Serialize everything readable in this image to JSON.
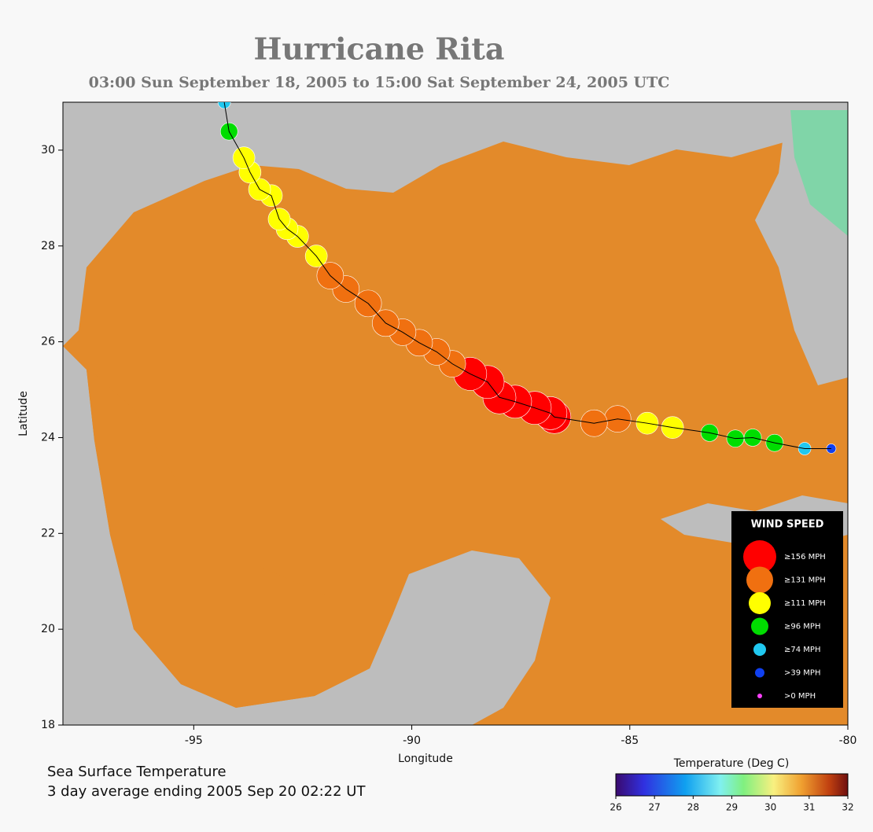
{
  "chart_data": {
    "type": "track",
    "title": "Hurricane Rita",
    "subtitle": "03:00 Sun September 18, 2005 to 15:00 Sat September 24, 2005  UTC",
    "x_label": "Longitude",
    "y_label": "Latitude",
    "xlim": [
      -98,
      -80
    ],
    "ylim": [
      18,
      31
    ],
    "xticks": [
      -95,
      -90,
      -85,
      -80
    ],
    "yticks": [
      18,
      20,
      22,
      24,
      26,
      28,
      30
    ],
    "x": [
      -80.38,
      -80.99,
      -81.68,
      -82.18,
      -82.58,
      -83.17,
      -84.02,
      -84.6,
      -85.28,
      -85.82,
      -86.73,
      -86.82,
      -87.18,
      -87.63,
      -87.99,
      -88.26,
      -88.66,
      -89.07,
      -89.43,
      -89.83,
      -90.21,
      -90.6,
      -91.0,
      -91.51,
      -91.87,
      -92.19,
      -92.62,
      -92.86,
      -93.04,
      -93.22,
      -93.49,
      -93.71,
      -93.85,
      -94.19,
      -94.3
    ],
    "y": [
      23.77,
      23.77,
      23.89,
      24.0,
      23.98,
      24.1,
      24.21,
      24.3,
      24.39,
      24.3,
      24.43,
      24.51,
      24.62,
      24.75,
      24.84,
      25.16,
      25.33,
      25.54,
      25.79,
      25.98,
      26.2,
      26.39,
      26.8,
      27.1,
      27.38,
      27.79,
      28.2,
      28.36,
      28.56,
      29.05,
      29.18,
      29.54,
      29.84,
      30.39,
      31.0
    ],
    "point_colors": [
      "#1040f0",
      "#20c8f0",
      "#00dd00",
      "#00dd00",
      "#00dd00",
      "#00dd00",
      "#ffff00",
      "#ffff00",
      "#f07010",
      "#f07010",
      "#ff0000",
      "#ff0000",
      "#ff0000",
      "#ff0000",
      "#ff0000",
      "#ff0000",
      "#ff0000",
      "#f07010",
      "#f07010",
      "#f07010",
      "#f07010",
      "#f07010",
      "#f07010",
      "#f07010",
      "#f07010",
      "#ffff00",
      "#ffff00",
      "#ffff00",
      "#ffff00",
      "#ffff00",
      "#ffff00",
      "#ffff00",
      "#ffff00",
      "#00dd00",
      "#20c8f0"
    ],
    "legend": {
      "title": "WIND SPEED",
      "items": [
        {
          "label": "≥156 MPH",
          "color": "#ff0000"
        },
        {
          "label": "≥131 MPH",
          "color": "#f07010"
        },
        {
          "label": "≥111 MPH",
          "color": "#ffff00"
        },
        {
          "label": "≥96 MPH",
          "color": "#00dd00"
        },
        {
          "label": "≥74 MPH",
          "color": "#20c8f0"
        },
        {
          "label": ">39 MPH",
          "color": "#1040f0"
        },
        {
          "label": ">0 MPH",
          "color": "#ff40ff"
        }
      ]
    },
    "notes": [
      "Sea Surface Temperature",
      "3 day average ending 2005 Sep 20 02:22 UT"
    ],
    "colorbar": {
      "label": "Temperature (Deg C)",
      "lim": [
        26,
        32
      ],
      "ticks": [
        26,
        27,
        28,
        29,
        30,
        31,
        32
      ]
    }
  }
}
